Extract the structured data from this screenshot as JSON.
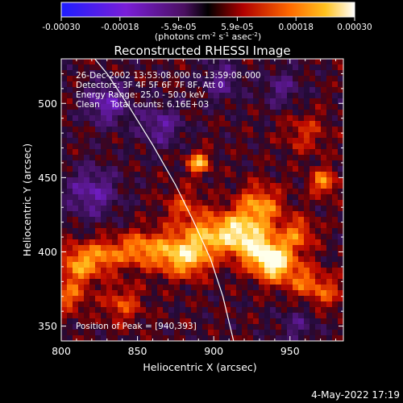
{
  "chart_data": {
    "type": "heatmap",
    "title": "Reconstructed RHESSI Image",
    "xlabel": "Heliocentric X (arcsec)",
    "ylabel": "Heliocentric Y (arcsec)",
    "xlim": [
      800,
      985
    ],
    "ylim": [
      340,
      530
    ],
    "x_ticks": [
      "800",
      "850",
      "900",
      "950"
    ],
    "y_ticks": [
      "350",
      "400",
      "450",
      "500"
    ],
    "colorbar": {
      "range": [
        -0.0003,
        0.0003
      ],
      "tick_labels": [
        "-0.00030",
        "-0.00018",
        "-5.9e-05",
        "5.9e-05",
        "0.00018",
        "0.00030"
      ],
      "unit_parts": [
        "(photons cm",
        "-2",
        " s",
        "-1",
        " asec",
        "-2",
        ")"
      ]
    },
    "annotations": {
      "time": "26-Dec-2002 13:53:08.000 to 13:59:08.000",
      "detectors": "Detectors: 3F 4F 5F 6F 7F 8F, Att 0",
      "energy": "Energy Range: 25.0 - 50.0 keV",
      "clean": "Clean    Total counts: 6.16E+03",
      "peak": "Position of Peak = [940,393]"
    },
    "peak_position": [
      940,
      393
    ],
    "limb_curve": [
      [
        818,
        535
      ],
      [
        830,
        520
      ],
      [
        845,
        497
      ],
      [
        860,
        472
      ],
      [
        875,
        445
      ],
      [
        887,
        420
      ],
      [
        898,
        395
      ],
      [
        906,
        370
      ],
      [
        913,
        340
      ]
    ],
    "blobs": [
      {
        "x": 940,
        "y": 393,
        "amp": 1.0,
        "r": 9
      },
      {
        "x": 925,
        "y": 405,
        "amp": 0.75,
        "r": 10
      },
      {
        "x": 930,
        "y": 430,
        "amp": 0.65,
        "r": 10
      },
      {
        "x": 912,
        "y": 415,
        "amp": 0.55,
        "r": 9
      },
      {
        "x": 955,
        "y": 412,
        "amp": 0.5,
        "r": 8
      },
      {
        "x": 960,
        "y": 380,
        "amp": 0.45,
        "r": 8
      },
      {
        "x": 895,
        "y": 410,
        "amp": 0.6,
        "r": 10
      },
      {
        "x": 885,
        "y": 395,
        "amp": 0.55,
        "r": 9
      },
      {
        "x": 870,
        "y": 400,
        "amp": 0.6,
        "r": 10
      },
      {
        "x": 850,
        "y": 402,
        "amp": 0.55,
        "r": 8
      },
      {
        "x": 830,
        "y": 398,
        "amp": 0.5,
        "r": 8
      },
      {
        "x": 812,
        "y": 392,
        "amp": 0.65,
        "r": 9
      },
      {
        "x": 805,
        "y": 370,
        "amp": 0.45,
        "r": 8
      },
      {
        "x": 840,
        "y": 365,
        "amp": 0.4,
        "r": 9
      },
      {
        "x": 890,
        "y": 460,
        "amp": 0.75,
        "r": 5
      },
      {
        "x": 972,
        "y": 447,
        "amp": 0.6,
        "r": 6
      },
      {
        "x": 975,
        "y": 372,
        "amp": 0.35,
        "r": 8
      },
      {
        "x": 880,
        "y": 430,
        "amp": 0.35,
        "r": 9
      },
      {
        "x": 960,
        "y": 480,
        "amp": 0.3,
        "r": 10
      },
      {
        "x": 820,
        "y": 440,
        "amp": -0.45,
        "r": 12
      },
      {
        "x": 830,
        "y": 500,
        "amp": -0.5,
        "r": 10
      },
      {
        "x": 865,
        "y": 485,
        "amp": -0.4,
        "r": 10
      },
      {
        "x": 905,
        "y": 515,
        "amp": -0.35,
        "r": 9
      },
      {
        "x": 945,
        "y": 510,
        "amp": -0.3,
        "r": 9
      },
      {
        "x": 955,
        "y": 350,
        "amp": -0.25,
        "r": 9
      }
    ]
  },
  "footer": {
    "date": "4-May-2022 17:19"
  }
}
